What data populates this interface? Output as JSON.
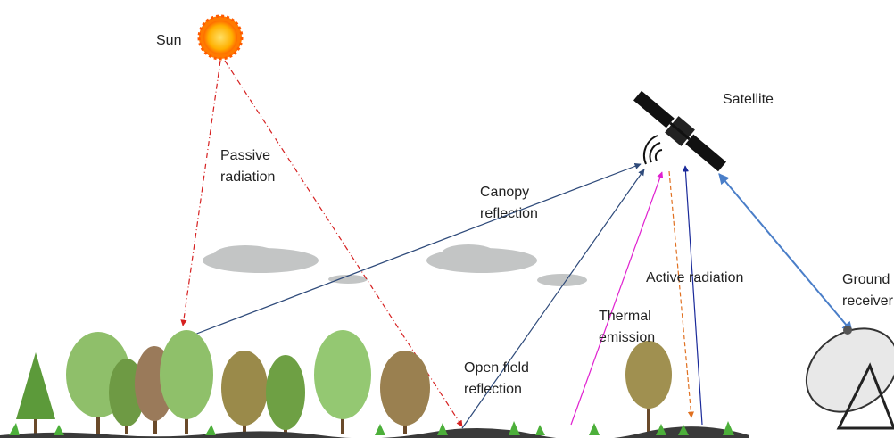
{
  "labels": {
    "sun": "Sun",
    "satellite": "Satellite",
    "passive_radiation": [
      "Passive",
      "radiation"
    ],
    "canopy_reflection": [
      "Canopy",
      "reflection"
    ],
    "active_radiation": "Active radiation",
    "ground_receiver": [
      "Ground",
      "receiver"
    ],
    "thermal_emission": [
      "Thermal",
      "emission"
    ],
    "open_field_reflection": [
      "Open field",
      "reflection"
    ]
  }
}
